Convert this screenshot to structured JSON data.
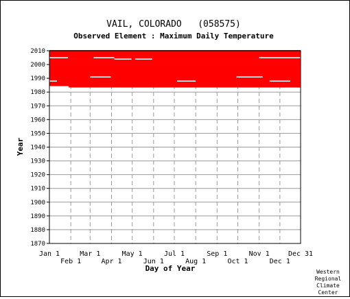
{
  "chart_data": {
    "type": "heatmap",
    "title": "VAIL, COLORADO   (058575)",
    "subtitle": "Observed Element : Maximum Daily Temperature",
    "xlabel": "Day of Year",
    "ylabel": "Year",
    "x_ticks_upper": [
      "Jan 1",
      "Mar 1",
      "May 1",
      "Jul 1",
      "Sep 1",
      "Nov 1",
      "Dec 31"
    ],
    "x_ticks_lower": [
      "Feb 1",
      "Apr 1",
      "Jun 1",
      "Aug 1",
      "Oct 1",
      "Dec 1"
    ],
    "x_tick_days_upper": [
      1,
      60,
      121,
      182,
      244,
      305,
      365
    ],
    "x_tick_days_lower": [
      32,
      91,
      152,
      213,
      274,
      335
    ],
    "y_ticks": [
      2010,
      2000,
      1990,
      1980,
      1970,
      1960,
      1950,
      1940,
      1930,
      1920,
      1910,
      1900,
      1890,
      1880,
      1870
    ],
    "xlim": [
      1,
      365
    ],
    "ylim": [
      1870,
      2010
    ],
    "data_color": "#ff0000",
    "grid": true,
    "data_coverage": {
      "first_year": 1984,
      "last_year": 2010,
      "first_year_start_day": 29,
      "description": "Observed days drawn in red; gaps (missing days) are white."
    },
    "missing_segments": [
      {
        "year": 2005,
        "start_day": 1,
        "end_day": 28
      },
      {
        "year": 2005,
        "start_day": 65,
        "end_day": 95
      },
      {
        "year": 2005,
        "start_day": 305,
        "end_day": 365
      },
      {
        "year": 2004,
        "start_day": 95,
        "end_day": 120
      },
      {
        "year": 2004,
        "start_day": 125,
        "end_day": 150
      },
      {
        "year": 1991,
        "start_day": 60,
        "end_day": 90
      },
      {
        "year": 1991,
        "start_day": 272,
        "end_day": 310
      },
      {
        "year": 1988,
        "start_day": 1,
        "end_day": 12
      },
      {
        "year": 1988,
        "start_day": 186,
        "end_day": 213
      },
      {
        "year": 1988,
        "start_day": 320,
        "end_day": 350
      }
    ]
  },
  "credit": [
    "Western",
    "Regional",
    "Climate",
    "Center"
  ]
}
